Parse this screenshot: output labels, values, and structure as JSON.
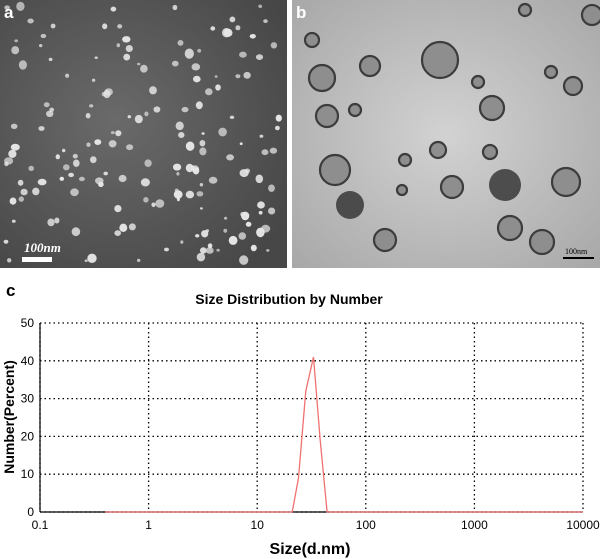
{
  "panels": {
    "a": {
      "label": "a",
      "scale_bar": "100nm"
    },
    "b": {
      "label": "b",
      "scale_bar": "100nm"
    },
    "c": {
      "label": "c"
    }
  },
  "colors": {
    "panel_a_background": "#5a5a5a",
    "panel_a_particles": "#e6e6e6",
    "panel_b_background": "#c8c8c8",
    "panel_b_particles": "#3c3c3c",
    "series_line": "#f07070",
    "grid": "#000000"
  },
  "chart_data": {
    "type": "line",
    "title": "Size Distribution by Number",
    "xlabel": "Size(d.nm)",
    "ylabel": "Number(Percent)",
    "x_scale": "log",
    "xlim": [
      0.1,
      10000
    ],
    "ylim": [
      0,
      50
    ],
    "x_ticks": [
      "0.1",
      "1",
      "10",
      "100",
      "1000",
      "10000"
    ],
    "y_ticks": [
      "0",
      "10",
      "20",
      "30",
      "40",
      "50"
    ],
    "grid": true,
    "grid_style": "dotted",
    "legend": "none",
    "series": [
      {
        "x": [
          0.4,
          1,
          10,
          18,
          21,
          24,
          28,
          33,
          38,
          44,
          50,
          100,
          1000,
          10000
        ],
        "y": [
          0,
          0,
          0,
          0,
          0,
          9,
          32,
          41,
          19,
          0,
          0,
          0,
          0,
          0
        ]
      }
    ]
  }
}
